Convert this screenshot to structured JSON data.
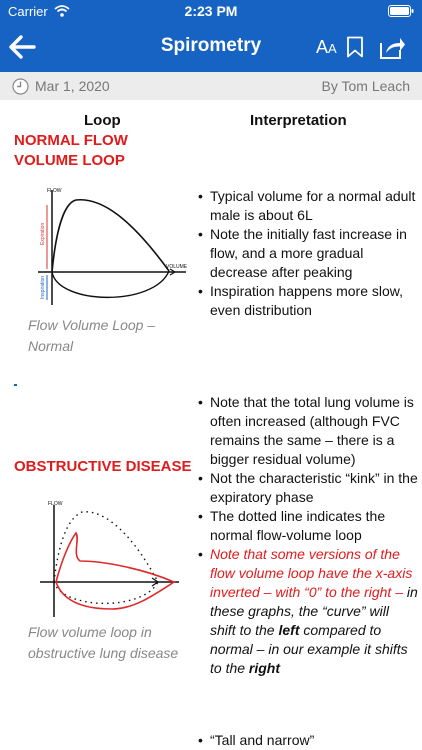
{
  "status_bar": {
    "carrier": "Carrier",
    "time": "2:23 PM"
  },
  "nav": {
    "title": "Spirometry",
    "text_size_big": "A",
    "text_size_small": "A"
  },
  "meta": {
    "date": "Mar 1, 2020",
    "author": "By Tom Leach"
  },
  "table": {
    "loop_header": "Loop",
    "interpretation_header": "Interpretation"
  },
  "normal": {
    "title_line1": "NORMAL FLOW",
    "title_line2": "VOLUME LOOP",
    "graph_labels": {
      "flow": "FLOW",
      "volume": "VOLUME",
      "expiration": "Expiration",
      "inspiration": "Inspiration"
    },
    "caption_line1": "Flow Volume Loop –",
    "caption_line2": "Normal",
    "bullets": [
      "Typical volume for a normal adult male is about 6L",
      "Note the initially fast increase in flow, and a more gradual decrease after peaking",
      "Inspiration happens more slow, even distribution"
    ]
  },
  "obstructive": {
    "title": "OBSTRUCTIVE DISEASE",
    "graph_labels": {
      "flow": "FLOW"
    },
    "caption_line1": "Flow volume loop in",
    "caption_line2": "obstructive lung disease",
    "bullets": [
      "Note that the total lung volume is often increased (although FVC remains the same – there is a bigger residual volume)",
      "Not the characteristic “kink” in the expiratory phase",
      "The dotted line indicates the normal flow-volume loop"
    ],
    "red_note": "Note that some versions of the flow volume loop have the x-axis inverted – with “0” to the right –",
    "note_part1": " in these graphs, the “curve” will shift to the ",
    "note_left": "left",
    "note_part2": " compared to normal – in our example it shifts to the ",
    "note_right": "right"
  },
  "restrictive": {
    "bullet": "“Tall and narrow”"
  }
}
